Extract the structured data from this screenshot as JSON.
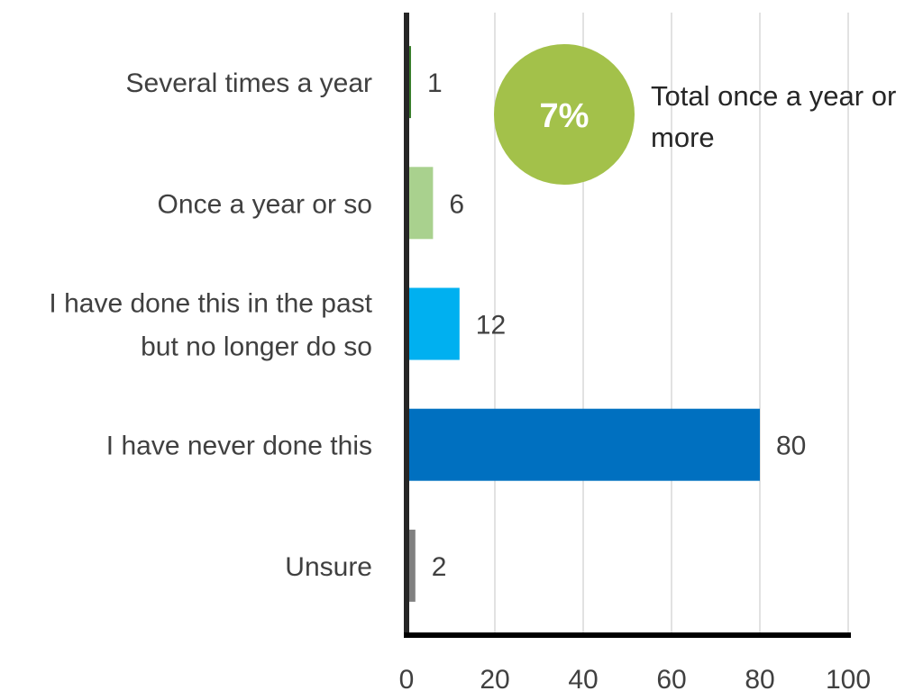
{
  "chart_data": {
    "type": "bar",
    "orientation": "horizontal",
    "categories": [
      "Several times a year",
      "Once a year or so",
      [
        "I have done this in the past",
        "but no longer do so"
      ],
      "I have never done this",
      "Unsure"
    ],
    "values": [
      1,
      6,
      12,
      80,
      2
    ],
    "colors": [
      "#3a7d2c",
      "#a9d18e",
      "#00b0f0",
      "#0070c0",
      "#808080"
    ],
    "data_labels": [
      "1",
      "6",
      "12",
      "80",
      "2"
    ],
    "xlim": [
      0,
      100
    ],
    "x_ticks": [
      "0",
      "20",
      "40",
      "60",
      "80",
      "100"
    ],
    "grid": true,
    "title": "",
    "xlabel": "",
    "ylabel": ""
  },
  "callout": {
    "value": "7%",
    "text_lines": [
      "Total once a year or",
      "more"
    ],
    "color": "#a3c14a"
  }
}
